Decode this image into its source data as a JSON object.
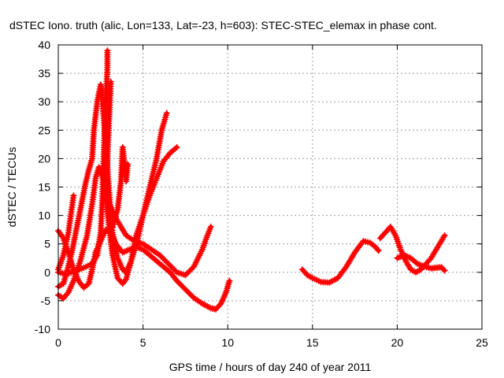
{
  "chart_data": {
    "type": "scatter",
    "title": "dSTEC Iono. truth (alic, Lon=133, Lat=-23, h=603): STEC-STEC_elemax in phase cont.",
    "xlabel": "GPS time / hours of day 240 of year 2011",
    "ylabel": "dSTEC  / TECUs",
    "xlim": [
      0,
      25
    ],
    "ylim": [
      -10,
      40
    ],
    "xticks": [
      0,
      5,
      10,
      15,
      20,
      25
    ],
    "yticks": [
      -10,
      -5,
      0,
      5,
      10,
      15,
      20,
      25,
      30,
      35,
      40
    ],
    "grid": true,
    "marker": "+",
    "color": "#ff0000",
    "series": [
      {
        "values": [
          [
            0.0,
            7.3
          ],
          [
            0.3,
            6.0
          ],
          [
            0.6,
            3.5
          ],
          [
            0.9,
            0.5
          ],
          [
            1.2,
            -1.5
          ],
          [
            1.5,
            -2.7
          ],
          [
            1.8,
            -2.0
          ],
          [
            2.0,
            0.5
          ],
          [
            2.2,
            3.5
          ],
          [
            2.5,
            5.5
          ],
          [
            2.8,
            7.5
          ],
          [
            3.1,
            7.0
          ],
          [
            3.4,
            5.0
          ],
          [
            3.8,
            3.5
          ],
          [
            4.2,
            4.0
          ],
          [
            4.6,
            4.5
          ],
          [
            5.0,
            4.0
          ],
          [
            5.4,
            3.0
          ],
          [
            5.8,
            2.0
          ],
          [
            6.2,
            1.0
          ],
          [
            6.6,
            0.0
          ],
          [
            7.0,
            -1.5
          ],
          [
            7.5,
            -3.0
          ],
          [
            8.0,
            -4.5
          ],
          [
            8.5,
            -5.5
          ],
          [
            9.0,
            -6.3
          ],
          [
            9.3,
            -6.5
          ],
          [
            9.6,
            -5.5
          ],
          [
            9.9,
            -3.5
          ],
          [
            10.1,
            -1.5
          ]
        ]
      },
      {
        "values": [
          [
            0.0,
            -4.0
          ],
          [
            0.3,
            -4.6
          ],
          [
            0.6,
            -3.5
          ],
          [
            0.9,
            -1.5
          ],
          [
            1.3,
            2.0
          ],
          [
            1.7,
            6.5
          ],
          [
            2.0,
            12.0
          ],
          [
            2.2,
            16.5
          ],
          [
            2.4,
            18.5
          ],
          [
            2.6,
            17.0
          ],
          [
            2.8,
            13.0
          ],
          [
            3.0,
            8.0
          ],
          [
            3.2,
            3.0
          ],
          [
            3.5,
            -1.0
          ],
          [
            3.8,
            -2.0
          ],
          [
            4.0,
            -1.2
          ],
          [
            4.3,
            2.0
          ],
          [
            4.6,
            6.5
          ],
          [
            5.0,
            10.0
          ],
          [
            5.4,
            13.5
          ],
          [
            5.8,
            16.5
          ],
          [
            6.2,
            19.5
          ],
          [
            6.6,
            21.0
          ],
          [
            7.0,
            22.0
          ]
        ]
      },
      {
        "values": [
          [
            0.0,
            -2.5
          ],
          [
            0.3,
            -2.0
          ],
          [
            0.5,
            0.0
          ],
          [
            0.8,
            3.5
          ],
          [
            1.0,
            6.5
          ],
          [
            1.2,
            9.5
          ],
          [
            1.4,
            12.5
          ],
          [
            1.6,
            15.5
          ],
          [
            1.8,
            18.0
          ],
          [
            2.0,
            20.0
          ],
          [
            2.1,
            25.0
          ],
          [
            2.3,
            30.0
          ],
          [
            2.5,
            33.0
          ],
          [
            2.6,
            30.0
          ],
          [
            2.8,
            23.0
          ],
          [
            3.0,
            14.0
          ],
          [
            3.2,
            7.0
          ],
          [
            3.5,
            2.5
          ],
          [
            3.8,
            0.5
          ],
          [
            4.0,
            0.0
          ],
          [
            4.3,
            2.0
          ],
          [
            4.7,
            6.0
          ],
          [
            5.0,
            10.0
          ],
          [
            5.4,
            15.0
          ],
          [
            5.8,
            20.0
          ],
          [
            6.1,
            25.0
          ],
          [
            6.4,
            28.0
          ]
        ]
      },
      {
        "values": [
          [
            0.0,
            0.5
          ],
          [
            0.3,
            3.0
          ],
          [
            0.6,
            7.0
          ],
          [
            0.9,
            13.5
          ]
        ]
      },
      {
        "values": [
          [
            0.0,
            0.0
          ],
          [
            0.5,
            -0.3
          ],
          [
            1.0,
            0.2
          ],
          [
            1.5,
            0.8
          ],
          [
            2.0,
            1.5
          ],
          [
            2.3,
            3.0
          ],
          [
            2.5,
            7.0
          ],
          [
            2.6,
            13.0
          ],
          [
            2.7,
            22.0
          ],
          [
            2.8,
            30.0
          ],
          [
            2.9,
            36.0
          ],
          [
            2.9,
            39.0
          ]
        ]
      },
      {
        "values": [
          [
            2.8,
            14.0
          ],
          [
            2.9,
            20.0
          ],
          [
            3.0,
            27.0
          ],
          [
            3.1,
            33.5
          ]
        ]
      },
      {
        "values": [
          [
            3.2,
            8.0
          ],
          [
            3.5,
            11.0
          ],
          [
            3.7,
            16.0
          ],
          [
            3.8,
            22.0
          ],
          [
            3.9,
            19.0
          ],
          [
            4.0,
            16.0
          ],
          [
            4.1,
            19.0
          ]
        ]
      },
      {
        "values": [
          [
            3.0,
            12.0
          ],
          [
            3.5,
            9.0
          ],
          [
            4.0,
            6.5
          ],
          [
            4.5,
            5.5
          ],
          [
            5.0,
            5.0
          ],
          [
            5.5,
            4.0
          ],
          [
            6.0,
            3.0
          ],
          [
            6.5,
            1.5
          ],
          [
            7.0,
            0.0
          ],
          [
            7.5,
            -0.5
          ],
          [
            8.0,
            1.0
          ],
          [
            8.5,
            4.0
          ],
          [
            8.8,
            6.5
          ],
          [
            9.0,
            8.0
          ]
        ]
      },
      {
        "values": [
          [
            14.4,
            0.5
          ],
          [
            14.7,
            -0.5
          ],
          [
            15.0,
            -1.0
          ],
          [
            15.5,
            -1.7
          ],
          [
            16.0,
            -1.8
          ],
          [
            16.5,
            -1.0
          ],
          [
            17.0,
            1.0
          ],
          [
            17.5,
            3.5
          ],
          [
            18.0,
            5.5
          ],
          [
            18.4,
            5.2
          ],
          [
            18.7,
            4.5
          ],
          [
            18.9,
            3.8
          ]
        ]
      },
      {
        "values": [
          [
            19.0,
            6.0
          ],
          [
            19.3,
            7.0
          ],
          [
            19.6,
            8.0
          ],
          [
            19.9,
            6.5
          ],
          [
            20.2,
            4.0
          ],
          [
            20.5,
            2.0
          ],
          [
            20.8,
            0.5
          ],
          [
            21.1,
            0.0
          ],
          [
            21.4,
            0.5
          ],
          [
            21.7,
            1.5
          ],
          [
            22.0,
            2.5
          ],
          [
            22.3,
            4.0
          ],
          [
            22.6,
            5.5
          ],
          [
            22.8,
            6.5
          ]
        ]
      },
      {
        "values": [
          [
            20.0,
            2.5
          ],
          [
            20.4,
            3.0
          ],
          [
            20.8,
            2.5
          ],
          [
            21.2,
            1.5
          ],
          [
            21.6,
            1.0
          ],
          [
            22.0,
            0.7
          ],
          [
            22.3,
            0.8
          ],
          [
            22.6,
            0.9
          ],
          [
            22.8,
            0.3
          ]
        ]
      }
    ]
  }
}
